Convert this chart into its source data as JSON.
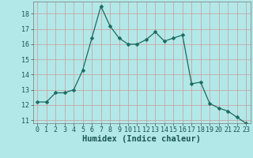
{
  "x": [
    0,
    1,
    2,
    3,
    4,
    5,
    6,
    7,
    8,
    9,
    10,
    11,
    12,
    13,
    14,
    15,
    16,
    17,
    18,
    19,
    20,
    21,
    22,
    23
  ],
  "y": [
    12.2,
    12.2,
    12.8,
    12.8,
    13.0,
    14.3,
    16.4,
    18.5,
    17.2,
    16.4,
    16.0,
    16.0,
    16.3,
    16.8,
    16.2,
    16.4,
    16.6,
    13.4,
    13.5,
    12.1,
    11.8,
    11.6,
    11.2,
    10.8
  ],
  "line_color": "#1a6b60",
  "marker": "D",
  "marker_size": 2.5,
  "bg_color": "#b3e8e8",
  "grid_color": "#aaaaaa",
  "xlabel": "Humidex (Indice chaleur)",
  "xlim": [
    -0.5,
    23.5
  ],
  "ylim": [
    10.8,
    18.8
  ],
  "yticks": [
    11,
    12,
    13,
    14,
    15,
    16,
    17,
    18
  ],
  "xticks": [
    0,
    1,
    2,
    3,
    4,
    5,
    6,
    7,
    8,
    9,
    10,
    11,
    12,
    13,
    14,
    15,
    16,
    17,
    18,
    19,
    20,
    21,
    22,
    23
  ],
  "font_color": "#1a5555",
  "tick_labelsize": 6.0,
  "xlabel_fontsize": 7.5,
  "linewidth": 0.9
}
